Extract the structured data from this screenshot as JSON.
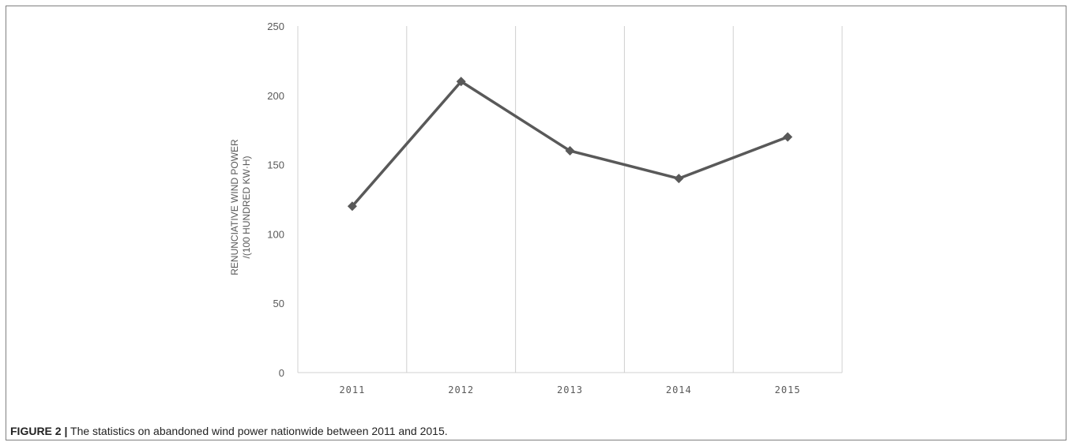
{
  "chart_data": {
    "type": "line",
    "categories": [
      "2011",
      "2012",
      "2013",
      "2014",
      "2015"
    ],
    "series": [
      {
        "values": [
          120,
          210,
          160,
          140,
          170
        ]
      }
    ],
    "ylabel_line1": "RENUNCIATIVE WIND POWER",
    "ylabel_line2": "/(100 HUNDRED KW·H)",
    "ylim": [
      0,
      250
    ],
    "yticks": [
      "0",
      "50",
      "100",
      "150",
      "200",
      "250"
    ],
    "grid": "vertical",
    "line_color": "#595959",
    "marker": "diamond"
  },
  "caption": {
    "label": "FIGURE 2 |",
    "text": " The statistics on abandoned wind power nationwide between 2011 and 2015."
  }
}
